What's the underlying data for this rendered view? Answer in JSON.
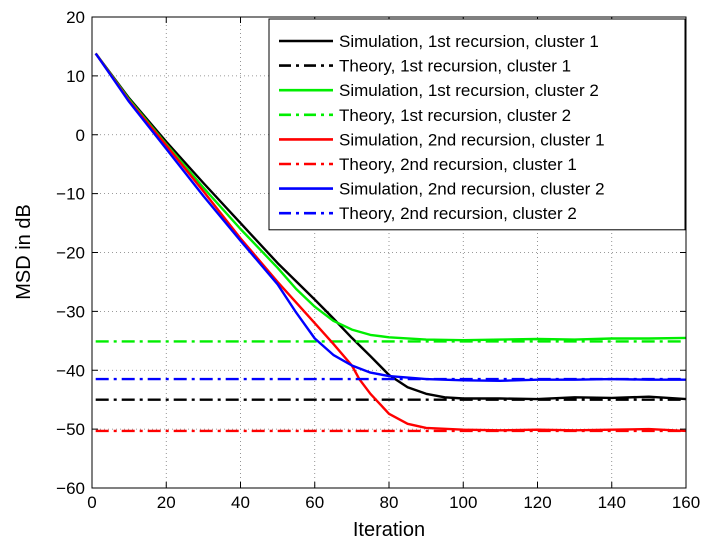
{
  "chart_data": {
    "type": "line",
    "title": "",
    "xlabel": "Iteration",
    "ylabel": "MSD in dB",
    "xlim": [
      0,
      160
    ],
    "ylim": [
      -60,
      20
    ],
    "xticks": [
      "0",
      "20",
      "40",
      "60",
      "80",
      "100",
      "120",
      "140",
      "160"
    ],
    "yticks": [
      "20",
      "10",
      "0",
      "−10",
      "−20",
      "−30",
      "−40",
      "−50",
      "−60"
    ],
    "grid": true,
    "legend_position": "top-right",
    "series": [
      {
        "name": "Simulation, 1st recursion, cluster 1",
        "color": "#000000",
        "dash": "solid",
        "x": [
          1,
          10,
          20,
          30,
          40,
          50,
          60,
          65,
          70,
          75,
          80,
          85,
          90,
          95,
          100,
          110,
          120,
          130,
          140,
          150,
          160
        ],
        "y": [
          13.8,
          6.2,
          -1.2,
          -8.2,
          -15.0,
          -21.8,
          -28.0,
          -31.2,
          -34.5,
          -37.6,
          -40.8,
          -42.9,
          -44.0,
          -44.6,
          -44.8,
          -44.8,
          -44.9,
          -44.6,
          -44.7,
          -44.5,
          -44.9
        ]
      },
      {
        "name": "Theory, 1st recursion, cluster 1",
        "color": "#000000",
        "dash": "dashdot",
        "x": [
          1,
          160
        ],
        "y": [
          -45.0,
          -45.0
        ]
      },
      {
        "name": "Simulation, 1st recursion, cluster 2",
        "color": "#00ee00",
        "dash": "solid",
        "x": [
          1,
          10,
          20,
          30,
          40,
          50,
          55,
          60,
          65,
          70,
          75,
          80,
          90,
          100,
          110,
          120,
          130,
          140,
          150,
          160
        ],
        "y": [
          13.8,
          6.0,
          -1.6,
          -9.0,
          -16.0,
          -22.6,
          -26.2,
          -29.2,
          -31.6,
          -33.1,
          -34.0,
          -34.4,
          -34.8,
          -34.9,
          -34.8,
          -34.7,
          -34.8,
          -34.6,
          -34.6,
          -34.5
        ]
      },
      {
        "name": "Theory, 1st recursion, cluster 2",
        "color": "#00ee00",
        "dash": "dashdot",
        "x": [
          1,
          160
        ],
        "y": [
          -35.1,
          -35.1
        ]
      },
      {
        "name": "Simulation, 2nd recursion, cluster 1",
        "color": "#ff0000",
        "dash": "solid",
        "x": [
          1,
          10,
          20,
          30,
          40,
          50,
          60,
          65,
          70,
          72,
          75,
          80,
          85,
          90,
          100,
          110,
          120,
          130,
          140,
          150,
          160
        ],
        "y": [
          13.8,
          5.8,
          -1.8,
          -9.6,
          -17.6,
          -25.0,
          -32.0,
          -35.5,
          -39.2,
          -41.5,
          -44.0,
          -47.4,
          -49.1,
          -49.8,
          -50.1,
          -50.2,
          -50.1,
          -50.2,
          -50.1,
          -50.0,
          -50.3
        ]
      },
      {
        "name": "Theory, 2nd recursion, cluster 1",
        "color": "#ff0000",
        "dash": "dashdot",
        "x": [
          1,
          160
        ],
        "y": [
          -50.3,
          -50.3
        ]
      },
      {
        "name": "Simulation, 2nd recursion, cluster 2",
        "color": "#0000ff",
        "dash": "solid",
        "x": [
          1,
          10,
          20,
          30,
          40,
          50,
          55,
          60,
          65,
          70,
          75,
          80,
          90,
          100,
          110,
          120,
          130,
          140,
          150,
          160
        ],
        "y": [
          13.8,
          5.6,
          -2.4,
          -10.4,
          -18.0,
          -25.4,
          -30.2,
          -34.6,
          -37.4,
          -39.2,
          -40.4,
          -41.0,
          -41.5,
          -41.7,
          -41.8,
          -41.6,
          -41.6,
          -41.5,
          -41.6,
          -41.6
        ]
      },
      {
        "name": "Theory, 2nd recursion, cluster 2",
        "color": "#0000ff",
        "dash": "dashdot",
        "x": [
          1,
          160
        ],
        "y": [
          -41.5,
          -41.5
        ]
      }
    ]
  }
}
